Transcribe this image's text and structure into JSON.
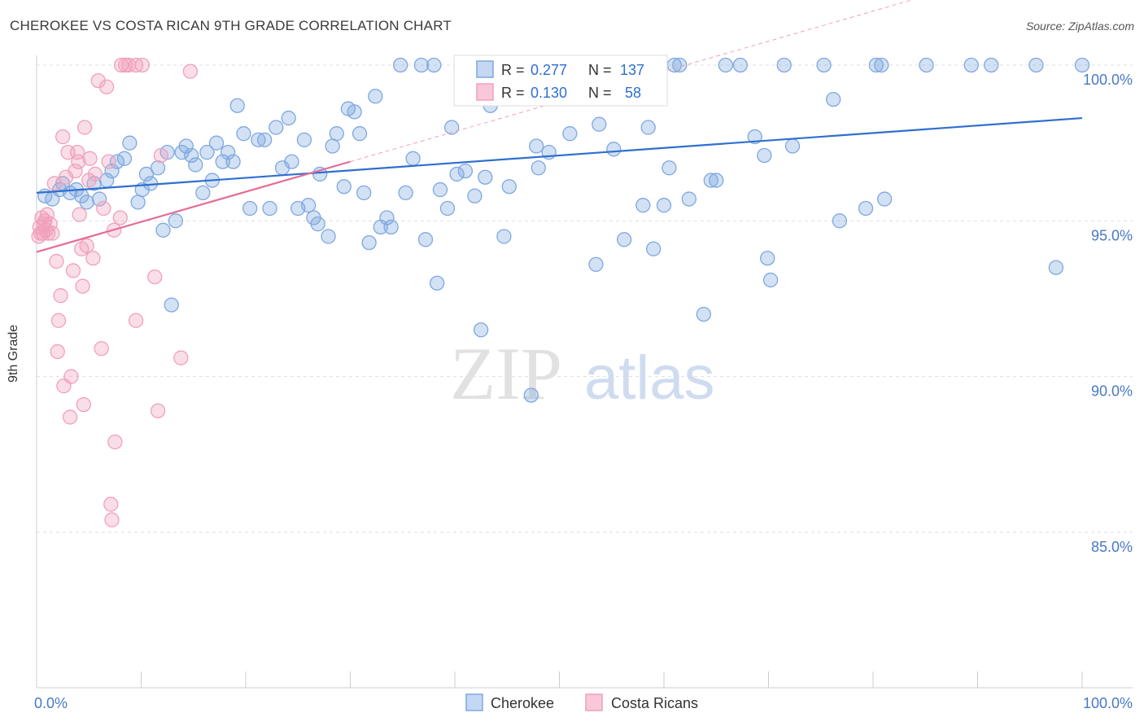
{
  "header": {
    "title": "CHEROKEE VS COSTA RICAN 9TH GRADE CORRELATION CHART",
    "source": "Source: ZipAtlas.com"
  },
  "chart_data": {
    "type": "scatter",
    "title": "CHEROKEE VS COSTA RICAN 9TH GRADE CORRELATION CHART",
    "xlabel": "",
    "ylabel": "9th Grade",
    "xlim": [
      0,
      100
    ],
    "ylim": [
      80.5,
      100.8
    ],
    "y_ticks": [
      85,
      90,
      95,
      100
    ],
    "y_tick_labels": [
      "85.0%",
      "90.0%",
      "95.0%",
      "100.0%"
    ],
    "x_tick_labels": [
      "0.0%",
      "100.0%"
    ],
    "grid": "horizontal dashed",
    "legend_position": "top-center",
    "watermark": "ZIPatlas",
    "stats": [
      {
        "r_label": "R =",
        "r": "0.277",
        "n_label": "N =",
        "n": "137"
      },
      {
        "r_label": "R =",
        "r": "0.130",
        "n_label": "N =",
        "n": "58"
      }
    ],
    "series": [
      {
        "name": "Cherokee",
        "color": "#7fa8e0",
        "trend_color": "#2f6fd0",
        "trend": {
          "x": [
            0,
            100
          ],
          "y": [
            95.9,
            98.3
          ]
        },
        "points": [
          [
            0.8,
            95.8
          ],
          [
            1.5,
            95.7
          ],
          [
            2.2,
            96.0
          ],
          [
            2.5,
            96.2
          ],
          [
            3.2,
            95.9
          ],
          [
            3.8,
            96.0
          ],
          [
            4.3,
            95.8
          ],
          [
            4.8,
            95.6
          ],
          [
            5.5,
            96.2
          ],
          [
            6.0,
            95.7
          ],
          [
            6.7,
            96.3
          ],
          [
            7.2,
            96.6
          ],
          [
            7.7,
            96.9
          ],
          [
            8.4,
            97.0
          ],
          [
            8.9,
            97.5
          ],
          [
            9.7,
            95.6
          ],
          [
            10.1,
            96.0
          ],
          [
            10.5,
            96.5
          ],
          [
            10.9,
            96.2
          ],
          [
            11.6,
            96.7
          ],
          [
            12.1,
            94.7
          ],
          [
            12.5,
            97.2
          ],
          [
            12.9,
            92.3
          ],
          [
            13.3,
            95.0
          ],
          [
            13.9,
            97.2
          ],
          [
            14.3,
            97.4
          ],
          [
            14.8,
            97.1
          ],
          [
            15.2,
            96.8
          ],
          [
            15.9,
            95.9
          ],
          [
            16.3,
            97.2
          ],
          [
            16.8,
            96.3
          ],
          [
            17.2,
            97.5
          ],
          [
            17.8,
            96.9
          ],
          [
            18.3,
            97.2
          ],
          [
            18.8,
            96.9
          ],
          [
            19.2,
            98.7
          ],
          [
            19.8,
            97.8
          ],
          [
            20.4,
            95.4
          ],
          [
            21.2,
            97.6
          ],
          [
            21.8,
            97.6
          ],
          [
            22.3,
            95.4
          ],
          [
            22.9,
            98.0
          ],
          [
            23.5,
            96.7
          ],
          [
            24.1,
            98.3
          ],
          [
            24.4,
            96.9
          ],
          [
            25.0,
            95.4
          ],
          [
            25.6,
            97.6
          ],
          [
            26.0,
            95.5
          ],
          [
            26.5,
            95.1
          ],
          [
            26.9,
            94.9
          ],
          [
            27.1,
            96.5
          ],
          [
            27.9,
            94.5
          ],
          [
            28.3,
            97.4
          ],
          [
            28.7,
            97.8
          ],
          [
            29.4,
            96.1
          ],
          [
            29.8,
            98.6
          ],
          [
            30.4,
            98.5
          ],
          [
            30.9,
            97.8
          ],
          [
            31.3,
            95.9
          ],
          [
            31.8,
            94.3
          ],
          [
            32.4,
            99.0
          ],
          [
            32.9,
            94.8
          ],
          [
            33.5,
            95.1
          ],
          [
            33.9,
            94.8
          ],
          [
            34.8,
            100.0
          ],
          [
            35.3,
            95.9
          ],
          [
            36.0,
            97.0
          ],
          [
            36.8,
            100.0
          ],
          [
            37.2,
            94.4
          ],
          [
            38.0,
            100.0
          ],
          [
            38.3,
            93.0
          ],
          [
            38.6,
            96.0
          ],
          [
            39.3,
            95.4
          ],
          [
            39.7,
            98.0
          ],
          [
            40.2,
            96.5
          ],
          [
            41.0,
            96.6
          ],
          [
            41.9,
            95.8
          ],
          [
            42.5,
            91.5
          ],
          [
            42.9,
            96.4
          ],
          [
            43.4,
            98.7
          ],
          [
            44.7,
            94.5
          ],
          [
            45.2,
            96.1
          ],
          [
            46.5,
            100.0
          ],
          [
            47.3,
            89.4
          ],
          [
            47.8,
            97.4
          ],
          [
            48.0,
            96.7
          ],
          [
            49.0,
            97.2
          ],
          [
            50.3,
            100.0
          ],
          [
            51.0,
            97.8
          ],
          [
            52.5,
            100.0
          ],
          [
            53.5,
            93.6
          ],
          [
            53.8,
            98.1
          ],
          [
            55.2,
            97.3
          ],
          [
            56.2,
            94.4
          ],
          [
            57.1,
            100.0
          ],
          [
            58.0,
            95.5
          ],
          [
            58.5,
            98.0
          ],
          [
            59.0,
            94.1
          ],
          [
            60.0,
            95.5
          ],
          [
            60.5,
            96.7
          ],
          [
            61.0,
            100.0
          ],
          [
            61.5,
            100.0
          ],
          [
            62.4,
            95.7
          ],
          [
            63.8,
            92.0
          ],
          [
            64.5,
            96.3
          ],
          [
            65.0,
            96.3
          ],
          [
            65.9,
            100.0
          ],
          [
            67.3,
            100.0
          ],
          [
            68.7,
            97.7
          ],
          [
            69.6,
            97.1
          ],
          [
            69.9,
            93.8
          ],
          [
            70.2,
            93.1
          ],
          [
            71.5,
            100.0
          ],
          [
            72.3,
            97.4
          ],
          [
            75.3,
            100.0
          ],
          [
            76.2,
            98.9
          ],
          [
            76.8,
            95.0
          ],
          [
            79.3,
            95.4
          ],
          [
            80.3,
            100.0
          ],
          [
            80.8,
            100.0
          ],
          [
            81.1,
            95.7
          ],
          [
            85.1,
            100.0
          ],
          [
            89.4,
            100.0
          ],
          [
            91.3,
            100.0
          ],
          [
            95.6,
            100.0
          ],
          [
            97.5,
            93.5
          ],
          [
            100.0,
            100.0
          ]
        ]
      },
      {
        "name": "Costa Ricans",
        "color": "#f0a0bb",
        "trend_color": "#e56c99",
        "trend": {
          "x": [
            0,
            30
          ],
          "y": [
            94.0,
            96.9
          ]
        },
        "points": [
          [
            0.2,
            94.5
          ],
          [
            0.3,
            94.8
          ],
          [
            0.4,
            94.6
          ],
          [
            0.5,
            95.1
          ],
          [
            0.6,
            94.6
          ],
          [
            0.7,
            94.9
          ],
          [
            0.8,
            95.0
          ],
          [
            0.9,
            94.7
          ],
          [
            1.0,
            95.2
          ],
          [
            1.1,
            94.6
          ],
          [
            1.3,
            94.9
          ],
          [
            1.5,
            94.6
          ],
          [
            1.7,
            96.2
          ],
          [
            1.9,
            93.7
          ],
          [
            2.0,
            90.8
          ],
          [
            2.1,
            91.8
          ],
          [
            2.3,
            92.6
          ],
          [
            2.5,
            97.7
          ],
          [
            2.6,
            89.7
          ],
          [
            2.8,
            96.4
          ],
          [
            3.0,
            97.2
          ],
          [
            3.2,
            88.7
          ],
          [
            3.3,
            90.0
          ],
          [
            3.5,
            93.4
          ],
          [
            3.7,
            96.6
          ],
          [
            3.9,
            97.2
          ],
          [
            4.0,
            96.9
          ],
          [
            4.1,
            95.2
          ],
          [
            4.3,
            94.1
          ],
          [
            4.4,
            92.9
          ],
          [
            4.5,
            89.1
          ],
          [
            4.6,
            98.0
          ],
          [
            4.8,
            94.2
          ],
          [
            5.0,
            96.3
          ],
          [
            5.1,
            97.0
          ],
          [
            5.4,
            93.8
          ],
          [
            5.6,
            96.5
          ],
          [
            5.9,
            99.5
          ],
          [
            6.2,
            90.9
          ],
          [
            6.4,
            95.4
          ],
          [
            6.7,
            99.3
          ],
          [
            6.9,
            96.9
          ],
          [
            7.1,
            85.9
          ],
          [
            7.2,
            85.4
          ],
          [
            7.4,
            94.7
          ],
          [
            7.5,
            87.9
          ],
          [
            8.0,
            95.1
          ],
          [
            8.1,
            100.0
          ],
          [
            8.5,
            100.0
          ],
          [
            8.8,
            100.0
          ],
          [
            9.5,
            91.8
          ],
          [
            9.5,
            100.0
          ],
          [
            10.1,
            100.0
          ],
          [
            11.3,
            93.2
          ],
          [
            11.6,
            88.9
          ],
          [
            11.9,
            97.1
          ],
          [
            13.8,
            90.6
          ],
          [
            14.7,
            99.8
          ]
        ]
      }
    ]
  }
}
